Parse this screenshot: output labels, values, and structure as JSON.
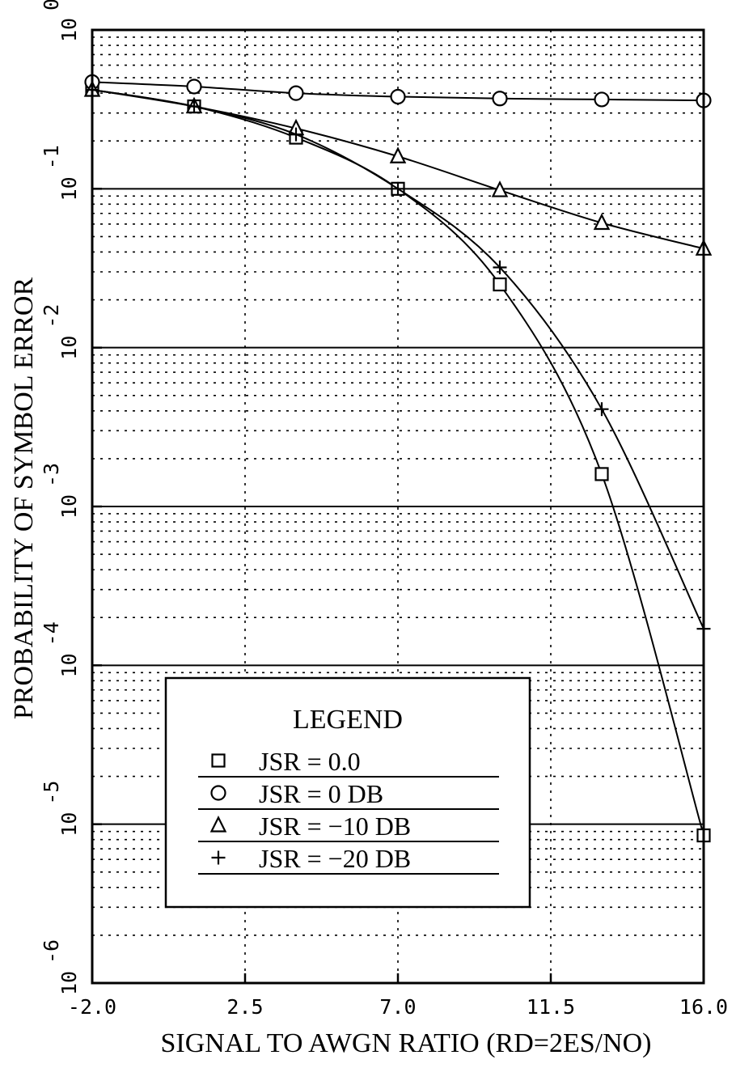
{
  "chart_data": {
    "type": "line",
    "title": "",
    "xlabel": "SIGNAL TO AWGN RATIO (RD=2ES/NO)",
    "ylabel": "PROBABILITY OF SYMBOL ERROR",
    "xlim": [
      -2.0,
      16.0
    ],
    "ylim": [
      1e-06,
      1
    ],
    "yscale": "log",
    "grid": true,
    "x_ticks": [
      "-2.0",
      "2.5",
      "7.0",
      "11.5",
      "16.0"
    ],
    "x_tick_values": [
      -2.0,
      2.5,
      7.0,
      11.5,
      16.0
    ],
    "y_ticks": [
      {
        "base": "10",
        "exp": "-6",
        "value": 1e-06
      },
      {
        "base": "10",
        "exp": "-5",
        "value": 1e-05
      },
      {
        "base": "10",
        "exp": "-4",
        "value": 0.0001
      },
      {
        "base": "10",
        "exp": "-3",
        "value": 0.001
      },
      {
        "base": "10",
        "exp": "-2",
        "value": 0.01
      },
      {
        "base": "10",
        "exp": "-1",
        "value": 0.1
      },
      {
        "base": "10",
        "exp": "0",
        "value": 1
      }
    ],
    "x": [
      -2.0,
      1.0,
      4.0,
      7.0,
      10.0,
      13.0,
      16.0
    ],
    "legend": {
      "title": "LEGEND",
      "position": "lower-left"
    },
    "series": [
      {
        "name": "JSR =   0.0",
        "marker": "square",
        "values": [
          0.42,
          0.33,
          0.21,
          0.1,
          0.025,
          0.0016,
          8.5e-06
        ]
      },
      {
        "name": "JSR =   0  DB",
        "marker": "circle",
        "values": [
          0.47,
          0.44,
          0.4,
          0.38,
          0.37,
          0.365,
          0.36
        ]
      },
      {
        "name": "JSR = −10  DB",
        "marker": "triangle",
        "values": [
          0.42,
          0.33,
          0.24,
          0.16,
          0.098,
          0.061,
          0.042
        ]
      },
      {
        "name": "JSR = −20  DB",
        "marker": "plus",
        "values": [
          0.42,
          0.33,
          0.22,
          0.1,
          0.032,
          0.0041,
          0.00017
        ]
      }
    ]
  }
}
